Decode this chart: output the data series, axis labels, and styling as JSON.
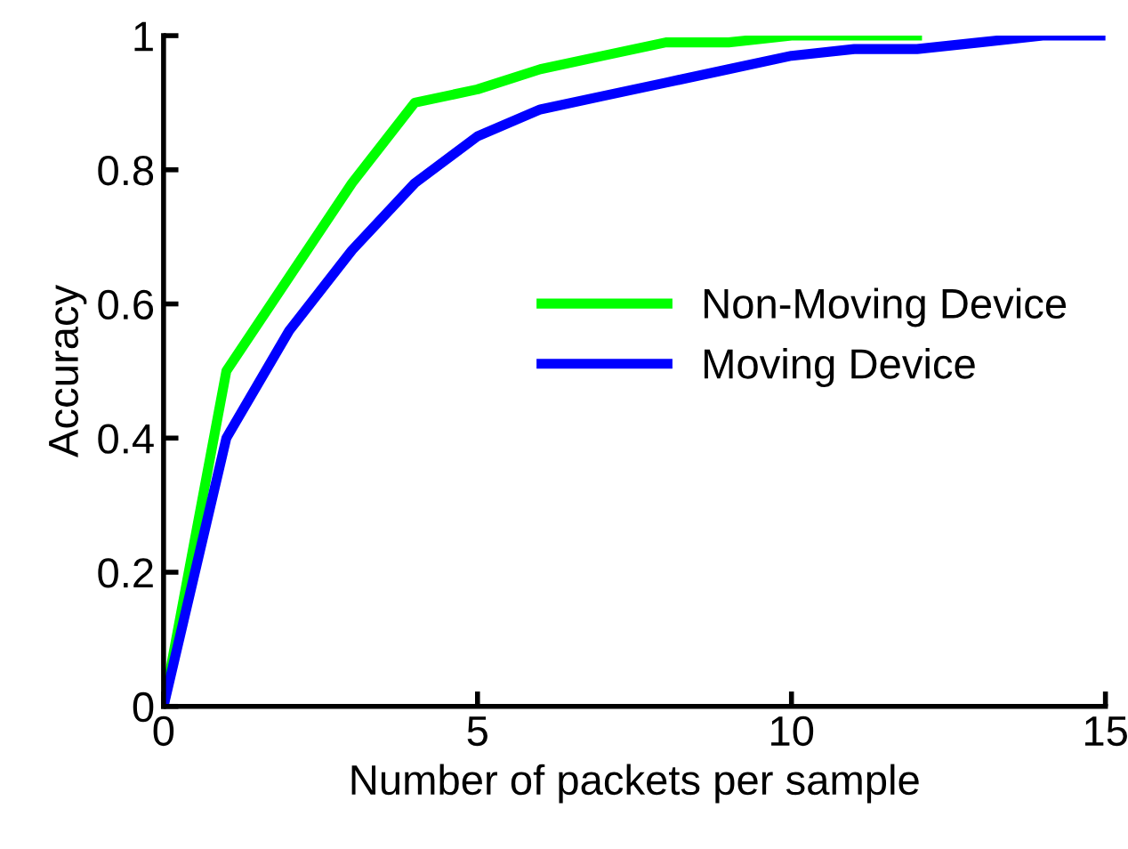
{
  "chart_data": {
    "type": "line",
    "xlabel": "Number of packets per sample",
    "ylabel": "Accuracy",
    "x": [
      0,
      1,
      2,
      3,
      4,
      5,
      6,
      7,
      8,
      9,
      10,
      11,
      12,
      13,
      14,
      15
    ],
    "series": [
      {
        "name": "Non-Moving Device",
        "color": "#00ff00",
        "values": [
          0,
          0.5,
          0.64,
          0.78,
          0.9,
          0.92,
          0.95,
          0.97,
          0.99,
          0.99,
          1.0,
          1.0,
          1.0,
          null,
          null,
          null
        ]
      },
      {
        "name": "Moving Device",
        "color": "#0000ff",
        "values": [
          0,
          0.4,
          0.56,
          0.68,
          0.78,
          0.85,
          0.89,
          0.91,
          0.93,
          0.95,
          0.97,
          0.98,
          0.98,
          0.99,
          1.0,
          1.0
        ]
      }
    ],
    "xlim": [
      0,
      15
    ],
    "ylim": [
      0,
      1
    ],
    "xticks": [
      0,
      5,
      10,
      15
    ],
    "yticks": [
      0,
      0.2,
      0.4,
      0.6,
      0.8,
      1
    ],
    "grid": false,
    "legend": "right",
    "marker": "none",
    "line_style": "solid"
  }
}
